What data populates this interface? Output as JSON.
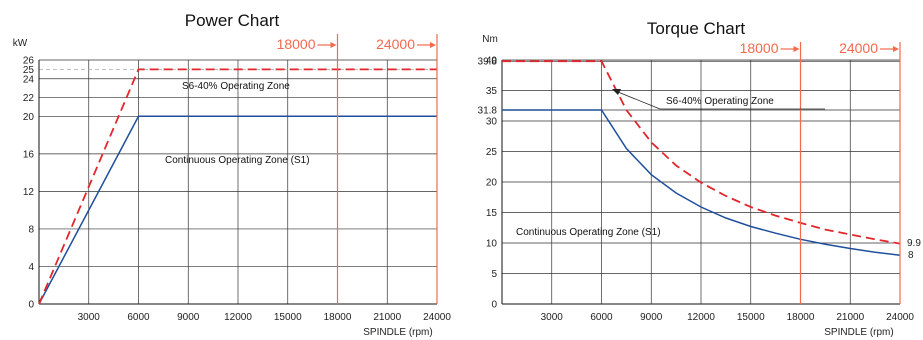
{
  "colors": {
    "continuous": "#1f4e9c",
    "s6": "#e3262b",
    "rpm_marker": "#f26a4b",
    "grid": "#333333",
    "ref_dash": "#aaaaaa"
  },
  "chart_data": [
    {
      "type": "line",
      "title": "Power Chart",
      "ylabel": "kW",
      "xlabel": "SPINDLE (rpm)",
      "xlim": [
        0,
        24000
      ],
      "ylim": [
        0,
        26
      ],
      "x_ticks": [
        "3000",
        "6000",
        "9000",
        "12000",
        "15000",
        "18000",
        "21000",
        "24000"
      ],
      "y_ticks": [
        "0",
        "4",
        "8",
        "12",
        "16",
        "20",
        "22",
        "24",
        "25",
        "26"
      ],
      "grid": true,
      "rpm_markers": [
        {
          "rpm": 18000,
          "label": "18000"
        },
        {
          "rpm": 24000,
          "label": "24000"
        }
      ],
      "series": [
        {
          "name": "Continuous Operating Zone (S1)",
          "style": "solid",
          "points": [
            [
              0,
              0
            ],
            [
              6000,
              20
            ],
            [
              24000,
              20
            ]
          ]
        },
        {
          "name": "S6-40%  Operating Zone",
          "style": "dashed",
          "points": [
            [
              0,
              0
            ],
            [
              6000,
              25
            ],
            [
              24000,
              25
            ]
          ]
        }
      ]
    },
    {
      "type": "line",
      "title": "Torque Chart",
      "ylabel": "Nm",
      "xlabel": "SPINDLE (rpm)",
      "xlim": [
        0,
        24000
      ],
      "ylim": [
        0,
        40
      ],
      "x_ticks": [
        "3000",
        "6000",
        "9000",
        "12000",
        "15000",
        "18000",
        "21000",
        "24000"
      ],
      "y_ticks": [
        "0",
        "5",
        "10",
        "15",
        "20",
        "25",
        "30",
        "31.8",
        "35",
        "39.8",
        "40"
      ],
      "grid": true,
      "rpm_markers": [
        {
          "rpm": 18000,
          "label": "18000"
        },
        {
          "rpm": 24000,
          "label": "24000"
        }
      ],
      "end_labels": [
        "9.9",
        "8"
      ],
      "series": [
        {
          "name": "Continuous Operating Zone (S1)",
          "style": "solid",
          "points": [
            [
              0,
              31.8
            ],
            [
              6000,
              31.8
            ],
            [
              7500,
              25.5
            ],
            [
              9000,
              21.2
            ],
            [
              10500,
              18.2
            ],
            [
              12000,
              15.9
            ],
            [
              13500,
              14.1
            ],
            [
              15000,
              12.7
            ],
            [
              16500,
              11.6
            ],
            [
              18000,
              10.6
            ],
            [
              19500,
              9.8
            ],
            [
              21000,
              9.1
            ],
            [
              22500,
              8.5
            ],
            [
              24000,
              8.0
            ]
          ]
        },
        {
          "name": "S6-40%  Operating Zone",
          "style": "dashed",
          "points": [
            [
              0,
              39.8
            ],
            [
              6000,
              39.8
            ],
            [
              7500,
              31.8
            ],
            [
              9000,
              26.5
            ],
            [
              10500,
              22.7
            ],
            [
              12000,
              19.9
            ],
            [
              13500,
              17.7
            ],
            [
              15000,
              15.9
            ],
            [
              16500,
              14.5
            ],
            [
              18000,
              13.3
            ],
            [
              19500,
              12.2
            ],
            [
              21000,
              11.4
            ],
            [
              22500,
              10.6
            ],
            [
              24000,
              9.9
            ]
          ]
        }
      ]
    }
  ]
}
